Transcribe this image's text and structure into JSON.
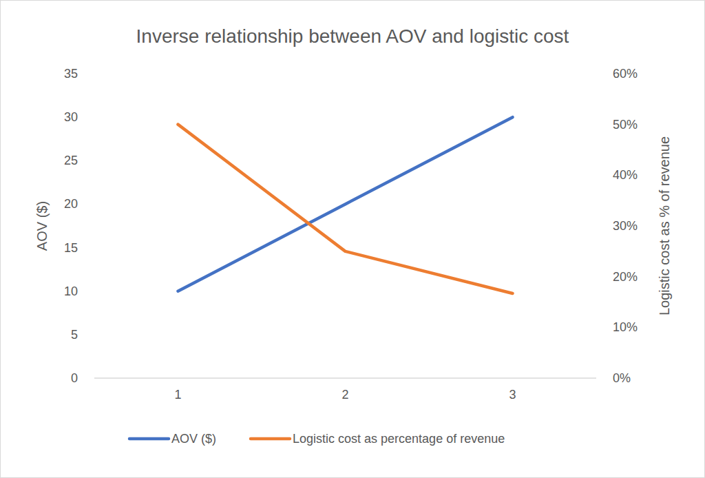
{
  "chart_data": {
    "type": "line",
    "title": "Inverse relationship between AOV and logistic cost",
    "categories": [
      "1",
      "2",
      "3"
    ],
    "ylabel": "AOV ($)",
    "y2label": "Logistic cost as % of revenue",
    "ylim": [
      0,
      35
    ],
    "yticks": [
      0,
      5,
      10,
      15,
      20,
      25,
      30,
      35
    ],
    "y2lim": [
      0,
      60
    ],
    "y2ticks": [
      {
        "value": 0,
        "label": "0%"
      },
      {
        "value": 10,
        "label": "10%"
      },
      {
        "value": 20,
        "label": "20%"
      },
      {
        "value": 30,
        "label": "30%"
      },
      {
        "value": 40,
        "label": "40%"
      },
      {
        "value": 50,
        "label": "50%"
      },
      {
        "value": 60,
        "label": "60%"
      }
    ],
    "grid": false,
    "legend": "bottom",
    "series": [
      {
        "name": "AOV ($)",
        "color": "#4472c4",
        "values": [
          10,
          20,
          30
        ]
      },
      {
        "name": "Logistic cost as percentage of revenue",
        "color": "#ed7d31",
        "values": [
          50,
          25,
          16.7
        ],
        "axis": "y2"
      }
    ]
  }
}
